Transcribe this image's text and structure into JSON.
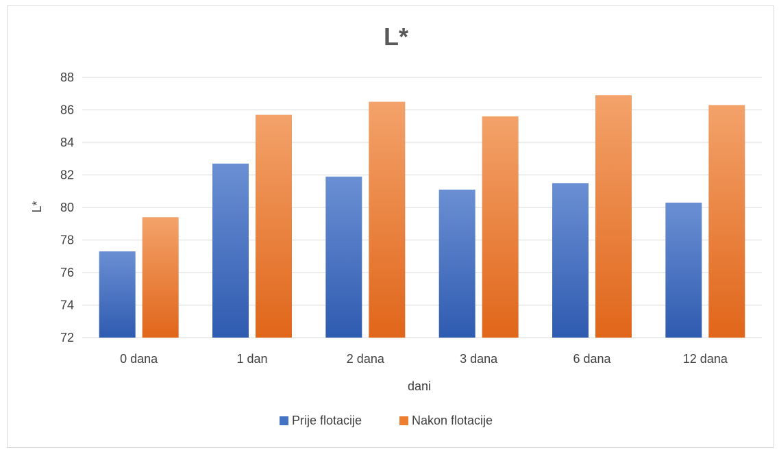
{
  "chart_data": {
    "type": "bar",
    "title": "L*",
    "xlabel": "dani",
    "ylabel": "L*",
    "categories": [
      "0 dana",
      "1 dan",
      "2 dana",
      "3 dana",
      "6 dana",
      "12 dana"
    ],
    "series": [
      {
        "name": "Prije flotacije",
        "values": [
          77.3,
          82.7,
          81.9,
          81.1,
          81.5,
          80.3
        ]
      },
      {
        "name": "Nakon flotacije",
        "values": [
          79.4,
          85.7,
          86.5,
          85.6,
          86.9,
          86.3
        ]
      }
    ],
    "ylim": [
      72,
      88
    ],
    "yticks": [
      72,
      74,
      76,
      78,
      80,
      82,
      84,
      86,
      88
    ],
    "grid": true,
    "legend": "bottom",
    "colors": {
      "series": [
        "#4472c4",
        "#ed7d31"
      ],
      "series_light": [
        "#6a8fd3",
        "#f3a26a"
      ],
      "series_dark": [
        "#2f5bb0",
        "#e0661a"
      ],
      "grid": "#d9d9d9",
      "text": "#404040"
    }
  }
}
